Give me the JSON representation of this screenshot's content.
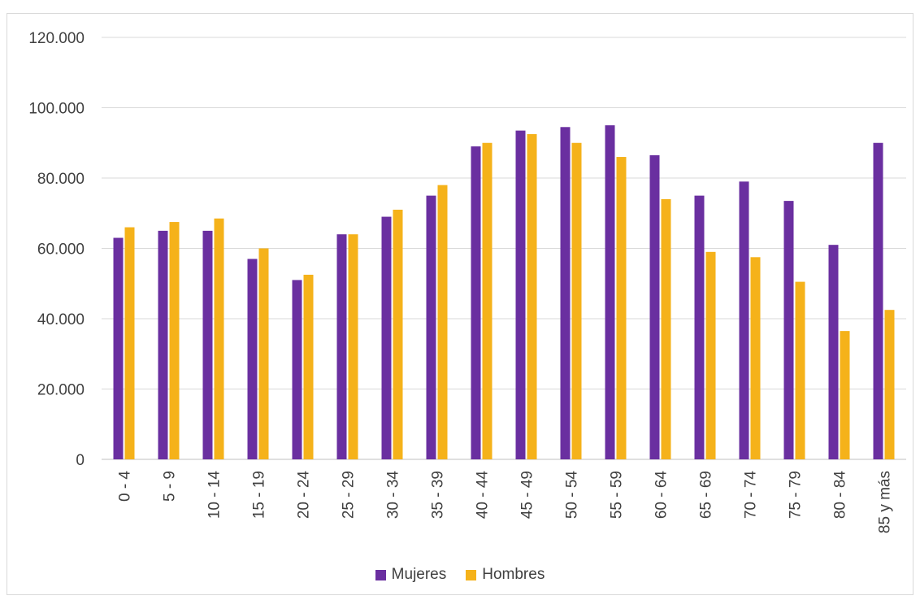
{
  "chart_data": {
    "type": "bar",
    "title": "",
    "xlabel": "",
    "ylabel": "",
    "ylim": [
      0,
      120000
    ],
    "y_ticks": [
      0,
      20000,
      40000,
      60000,
      80000,
      100000,
      120000
    ],
    "y_tick_labels": [
      "0",
      "20.000",
      "40.000",
      "60.000",
      "80.000",
      "100.000",
      "120.000"
    ],
    "grid": true,
    "legend_position": "bottom",
    "categories": [
      "0 - 4",
      "5 - 9",
      "10 - 14",
      "15 - 19",
      "20 - 24",
      "25 - 29",
      "30 - 34",
      "35 - 39",
      "40 - 44",
      "45 - 49",
      "50 - 54",
      "55 - 59",
      "60 - 64",
      "65 - 69",
      "70 - 74",
      "75 - 79",
      "80 - 84",
      "85 y más"
    ],
    "series": [
      {
        "name": "Mujeres",
        "color": "#6a2fa0",
        "values": [
          63000,
          65000,
          65000,
          57000,
          51000,
          64000,
          69000,
          75000,
          89000,
          93500,
          94500,
          95000,
          86500,
          75000,
          79000,
          73500,
          61000,
          90000
        ]
      },
      {
        "name": "Hombres",
        "color": "#f5b21a",
        "values": [
          66000,
          67500,
          68500,
          60000,
          52500,
          64000,
          71000,
          78000,
          90000,
          92500,
          90000,
          86000,
          74000,
          59000,
          57500,
          50500,
          36500,
          42500
        ]
      }
    ]
  }
}
